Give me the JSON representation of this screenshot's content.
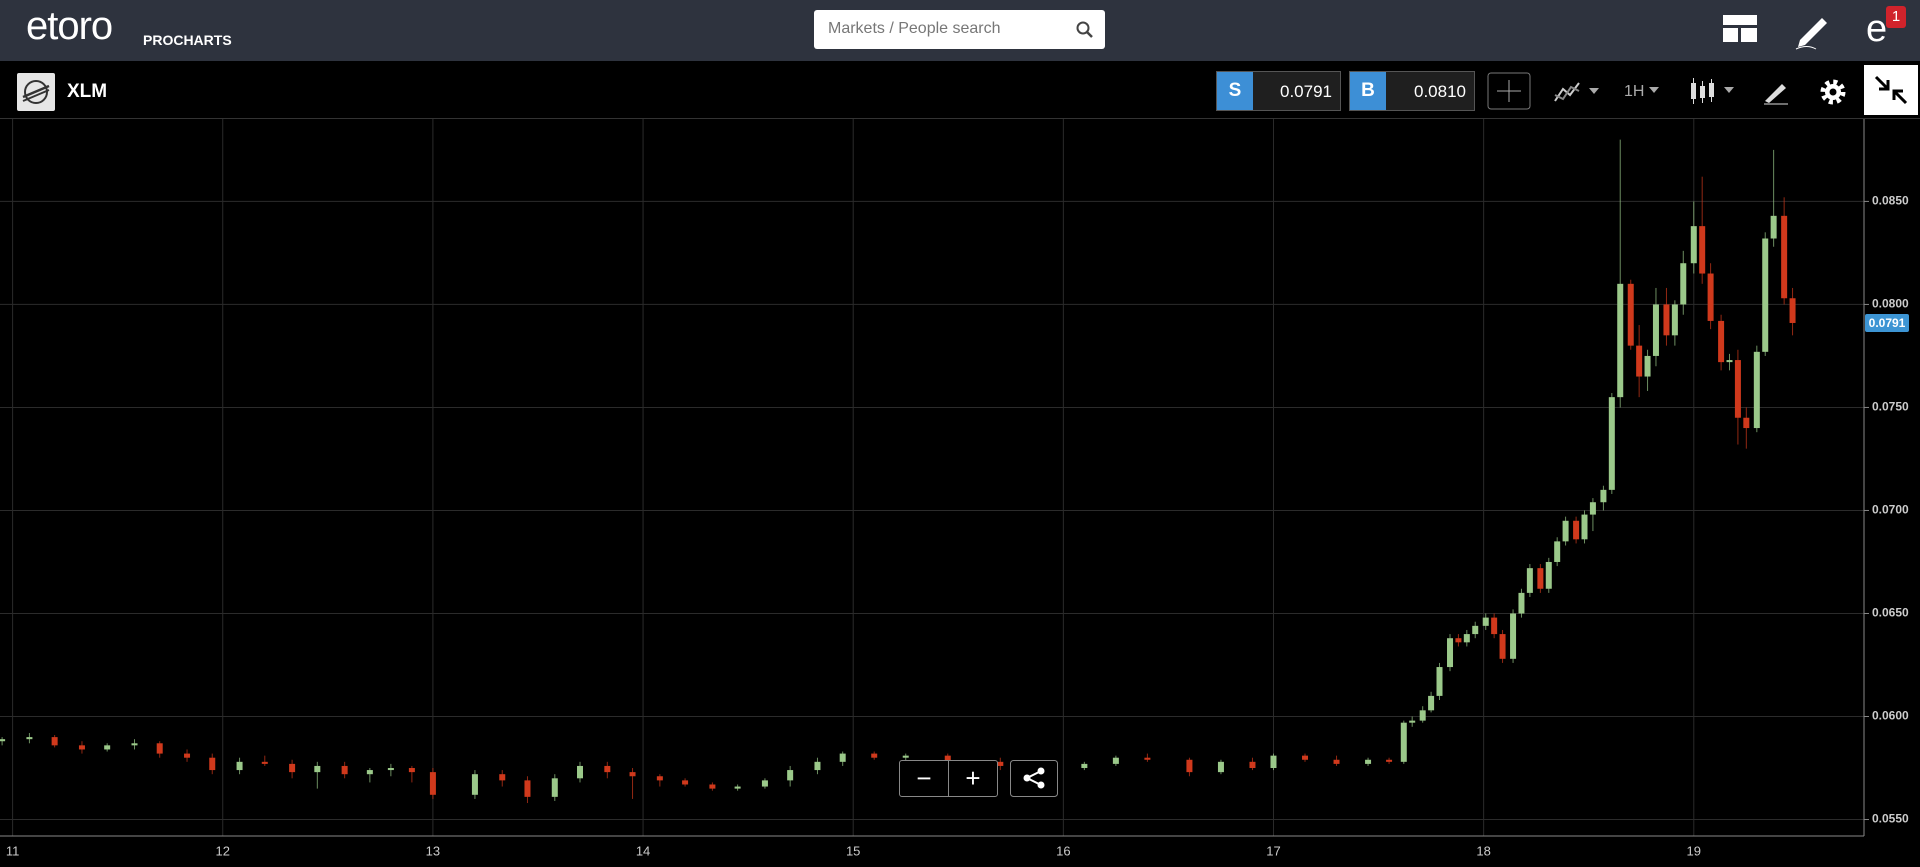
{
  "topbar": {
    "logo": "etoro",
    "logo_sub": "PROCHARTS",
    "search_placeholder": "Markets / People search",
    "notifications": "1"
  },
  "toolbar": {
    "symbol": "XLM",
    "sell_label": "S",
    "sell_price": "0.0791",
    "buy_label": "B",
    "buy_price": "0.0810",
    "timeframe": "1H"
  },
  "zoom": {
    "out": "−",
    "in": "+"
  },
  "chart_data": {
    "type": "candlestick",
    "up_color": "#9bc98a",
    "down_color": "#d0391c",
    "grid": true,
    "xlim": [
      10.94,
      19.81
    ],
    "xticks": [
      11,
      12,
      13,
      14,
      15,
      16,
      17,
      18,
      19
    ],
    "ylim": [
      0.0542,
      0.089
    ],
    "yticks": [
      {
        "value": 0.055,
        "label": "0.0550"
      },
      {
        "value": 0.06,
        "label": "0.0600"
      },
      {
        "value": 0.065,
        "label": "0.0650"
      },
      {
        "value": 0.07,
        "label": "0.0700"
      },
      {
        "value": 0.075,
        "label": "0.0750"
      },
      {
        "value": 0.08,
        "label": "0.0800"
      },
      {
        "value": 0.085,
        "label": "0.0850"
      }
    ],
    "last_price": {
      "value": 0.0791,
      "label": "0.0791"
    },
    "candles": [
      [
        10.95,
        0.0588,
        0.059,
        0.0586,
        0.0589
      ],
      [
        11.08,
        0.0589,
        0.0592,
        0.0587,
        0.059
      ],
      [
        11.2,
        0.059,
        0.0591,
        0.0585,
        0.0586
      ],
      [
        11.33,
        0.0586,
        0.0588,
        0.0582,
        0.0584
      ],
      [
        11.45,
        0.0584,
        0.0587,
        0.0583,
        0.0586
      ],
      [
        11.58,
        0.0586,
        0.0589,
        0.0584,
        0.0587
      ],
      [
        11.7,
        0.0587,
        0.0588,
        0.058,
        0.0582
      ],
      [
        11.83,
        0.0582,
        0.0584,
        0.0578,
        0.058
      ],
      [
        11.95,
        0.058,
        0.0582,
        0.0572,
        0.0574
      ],
      [
        12.08,
        0.0574,
        0.058,
        0.0572,
        0.0578
      ],
      [
        12.2,
        0.0578,
        0.0581,
        0.0576,
        0.0577
      ],
      [
        12.33,
        0.0577,
        0.0579,
        0.057,
        0.0573
      ],
      [
        12.45,
        0.0573,
        0.0578,
        0.0565,
        0.0576
      ],
      [
        12.58,
        0.0576,
        0.0578,
        0.057,
        0.0572
      ],
      [
        12.7,
        0.0572,
        0.0575,
        0.0568,
        0.0574
      ],
      [
        12.8,
        0.0574,
        0.0577,
        0.0571,
        0.0575
      ],
      [
        12.9,
        0.0575,
        0.0576,
        0.0568,
        0.0573
      ],
      [
        13.0,
        0.0573,
        0.0575,
        0.056,
        0.0562
      ],
      [
        13.2,
        0.0562,
        0.0574,
        0.056,
        0.0572
      ],
      [
        13.33,
        0.0572,
        0.0574,
        0.0566,
        0.0569
      ],
      [
        13.45,
        0.0569,
        0.0571,
        0.0558,
        0.0561
      ],
      [
        13.58,
        0.0561,
        0.0572,
        0.0559,
        0.057
      ],
      [
        13.7,
        0.057,
        0.0578,
        0.0568,
        0.0576
      ],
      [
        13.83,
        0.0576,
        0.0578,
        0.057,
        0.0573
      ],
      [
        13.95,
        0.0573,
        0.0575,
        0.056,
        0.0571
      ],
      [
        14.08,
        0.0571,
        0.0572,
        0.0566,
        0.0569
      ],
      [
        14.2,
        0.0569,
        0.057,
        0.0566,
        0.0567
      ],
      [
        14.33,
        0.0567,
        0.0568,
        0.0564,
        0.0565
      ],
      [
        14.45,
        0.0565,
        0.0567,
        0.0564,
        0.0566
      ],
      [
        14.58,
        0.0566,
        0.057,
        0.0565,
        0.0569
      ],
      [
        14.7,
        0.0569,
        0.0576,
        0.0566,
        0.0574
      ],
      [
        14.83,
        0.0574,
        0.058,
        0.0572,
        0.0578
      ],
      [
        14.95,
        0.0578,
        0.0583,
        0.0576,
        0.0582
      ],
      [
        15.1,
        0.0582,
        0.0583,
        0.0579,
        0.058
      ],
      [
        15.25,
        0.058,
        0.0582,
        0.0578,
        0.0581
      ],
      [
        15.45,
        0.0581,
        0.0582,
        0.0576,
        0.0578
      ],
      [
        15.7,
        0.0578,
        0.058,
        0.0574,
        0.0576
      ],
      [
        15.95,
        0.0576,
        0.0578,
        0.0573,
        0.0575
      ],
      [
        16.1,
        0.0575,
        0.0578,
        0.0574,
        0.0577
      ],
      [
        16.25,
        0.0577,
        0.0581,
        0.0576,
        0.058
      ],
      [
        16.4,
        0.058,
        0.0582,
        0.0578,
        0.0579
      ],
      [
        16.6,
        0.0579,
        0.058,
        0.0571,
        0.0573
      ],
      [
        16.75,
        0.0573,
        0.0579,
        0.0572,
        0.0578
      ],
      [
        16.9,
        0.0578,
        0.058,
        0.0574,
        0.0575
      ],
      [
        17.0,
        0.0575,
        0.0582,
        0.0574,
        0.0581
      ],
      [
        17.15,
        0.0581,
        0.0582,
        0.0578,
        0.0579
      ],
      [
        17.3,
        0.0579,
        0.0581,
        0.0576,
        0.0577
      ],
      [
        17.45,
        0.0577,
        0.058,
        0.0576,
        0.0579
      ],
      [
        17.55,
        0.0579,
        0.058,
        0.0577,
        0.0578
      ],
      [
        17.62,
        0.0578,
        0.0598,
        0.0577,
        0.0597
      ],
      [
        17.66,
        0.0597,
        0.06,
        0.0595,
        0.0598
      ],
      [
        17.71,
        0.0598,
        0.0605,
        0.0597,
        0.0603
      ],
      [
        17.75,
        0.0603,
        0.0612,
        0.0602,
        0.061
      ],
      [
        17.79,
        0.061,
        0.0626,
        0.0608,
        0.0624
      ],
      [
        17.84,
        0.0624,
        0.064,
        0.0622,
        0.0638
      ],
      [
        17.88,
        0.0638,
        0.064,
        0.0634,
        0.0636
      ],
      [
        17.92,
        0.0636,
        0.0642,
        0.0634,
        0.064
      ],
      [
        17.96,
        0.064,
        0.0646,
        0.0638,
        0.0644
      ],
      [
        18.01,
        0.0644,
        0.065,
        0.0642,
        0.0648
      ],
      [
        18.05,
        0.0648,
        0.065,
        0.0638,
        0.064
      ],
      [
        18.09,
        0.064,
        0.0642,
        0.0626,
        0.0628
      ],
      [
        18.14,
        0.0628,
        0.0652,
        0.0626,
        0.065
      ],
      [
        18.18,
        0.065,
        0.0662,
        0.0648,
        0.066
      ],
      [
        18.22,
        0.066,
        0.0674,
        0.0658,
        0.0672
      ],
      [
        18.27,
        0.0672,
        0.0674,
        0.066,
        0.0662
      ],
      [
        18.31,
        0.0662,
        0.0677,
        0.066,
        0.0675
      ],
      [
        18.35,
        0.0675,
        0.0687,
        0.0673,
        0.0685
      ],
      [
        18.39,
        0.0685,
        0.0697,
        0.0683,
        0.0695
      ],
      [
        18.44,
        0.0695,
        0.0697,
        0.0684,
        0.0686
      ],
      [
        18.48,
        0.0686,
        0.07,
        0.0684,
        0.0698
      ],
      [
        18.52,
        0.0698,
        0.0706,
        0.069,
        0.0704
      ],
      [
        18.57,
        0.0704,
        0.0712,
        0.07,
        0.071
      ],
      [
        18.61,
        0.071,
        0.0757,
        0.0708,
        0.0755
      ],
      [
        18.65,
        0.0755,
        0.088,
        0.075,
        0.081
      ],
      [
        18.7,
        0.081,
        0.0812,
        0.0778,
        0.078
      ],
      [
        18.74,
        0.078,
        0.079,
        0.0755,
        0.0765
      ],
      [
        18.78,
        0.0765,
        0.0778,
        0.0758,
        0.0775
      ],
      [
        18.82,
        0.0775,
        0.0808,
        0.077,
        0.08
      ],
      [
        18.87,
        0.08,
        0.0808,
        0.078,
        0.0785
      ],
      [
        18.91,
        0.0785,
        0.0802,
        0.078,
        0.08
      ],
      [
        18.95,
        0.08,
        0.0826,
        0.0795,
        0.082
      ],
      [
        19.0,
        0.082,
        0.085,
        0.0815,
        0.0838
      ],
      [
        19.04,
        0.0838,
        0.0862,
        0.081,
        0.0815
      ],
      [
        19.08,
        0.0815,
        0.082,
        0.0788,
        0.0792
      ],
      [
        19.13,
        0.0792,
        0.0795,
        0.0768,
        0.0772
      ],
      [
        19.17,
        0.0772,
        0.0776,
        0.0768,
        0.0773
      ],
      [
        19.21,
        0.0773,
        0.0778,
        0.0732,
        0.0745
      ],
      [
        19.25,
        0.0745,
        0.075,
        0.073,
        0.074
      ],
      [
        19.3,
        0.074,
        0.078,
        0.0738,
        0.0777
      ],
      [
        19.34,
        0.0777,
        0.0835,
        0.0775,
        0.0832
      ],
      [
        19.38,
        0.0832,
        0.0875,
        0.0828,
        0.0843
      ],
      [
        19.43,
        0.0843,
        0.0852,
        0.08,
        0.0803
      ],
      [
        19.47,
        0.0803,
        0.0808,
        0.0785,
        0.0791
      ]
    ]
  }
}
